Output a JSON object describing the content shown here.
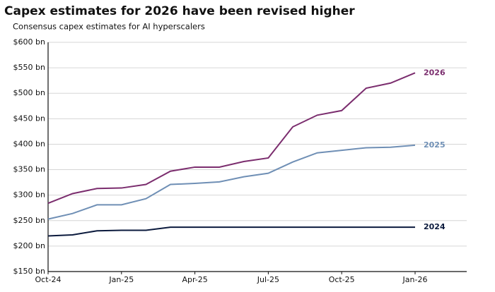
{
  "chart_data": {
    "type": "line",
    "title": "Capex estimates for 2026 have been revised higher",
    "subtitle": "Consensus capex estimates for AI hyperscalers",
    "categories": [
      "Oct-24",
      null,
      null,
      "Jan-25",
      null,
      null,
      "Apr-25",
      null,
      null,
      "Jul-25",
      null,
      null,
      "Oct-25",
      null,
      null,
      "Jan-26"
    ],
    "series": [
      {
        "name": "2026",
        "color": "#7b2d6e",
        "values": [
          284,
          303,
          313,
          314,
          321,
          347,
          355,
          355,
          366,
          373,
          434,
          457,
          466,
          510,
          520,
          540
        ]
      },
      {
        "name": "2025",
        "color": "#6f8fb5",
        "values": [
          253,
          264,
          281,
          281,
          293,
          321,
          323,
          326,
          336,
          343,
          365,
          383,
          388,
          393,
          394,
          398
        ]
      },
      {
        "name": "2024",
        "color": "#0b1a3d",
        "values": [
          220,
          222,
          230,
          231,
          231,
          237,
          237,
          237,
          237,
          237,
          237,
          237,
          237,
          237,
          237,
          237
        ]
      }
    ],
    "ylim": [
      150,
      600
    ],
    "yticks": [
      {
        "value": 150,
        "label": "$150 bn"
      },
      {
        "value": 200,
        "label": "$200 bn"
      },
      {
        "value": 250,
        "label": "$250 bn"
      },
      {
        "value": 300,
        "label": "$300 bn"
      },
      {
        "value": 350,
        "label": "$350 bn"
      },
      {
        "value": 400,
        "label": "$400 bn"
      },
      {
        "value": 450,
        "label": "$450 bn"
      },
      {
        "value": 500,
        "label": "$500 bn"
      },
      {
        "value": 550,
        "label": "$550 bn"
      },
      {
        "value": 600,
        "label": "$600 bn"
      }
    ],
    "grid": true
  }
}
